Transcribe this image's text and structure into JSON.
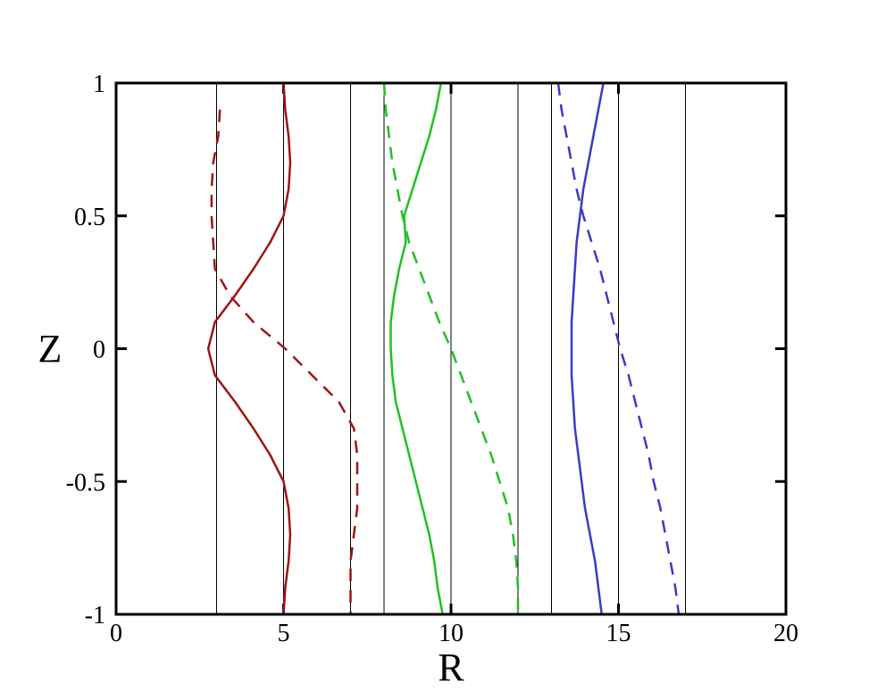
{
  "chart_data": {
    "type": "line",
    "x_label": "R",
    "y_label": "Z",
    "xlim": [
      0,
      20
    ],
    "xticks": [
      0,
      5,
      10,
      15,
      20
    ],
    "ylim": [
      -1,
      1
    ],
    "yticks": [
      -1,
      -0.5,
      0,
      0.5,
      1
    ],
    "reference_lines": [
      3,
      5,
      7,
      8,
      10,
      12,
      13,
      15,
      17
    ],
    "y": [
      1,
      0.9,
      0.8,
      0.7,
      0.6,
      0.5,
      0.4,
      0.3,
      0.2,
      0.1,
      0,
      -0.1,
      -0.2,
      -0.3,
      -0.4,
      -0.5,
      -0.6,
      -0.7,
      -0.8,
      -0.9,
      -1
    ],
    "series": [
      {
        "color": "#a01414",
        "dash": false,
        "values": [
          5.0,
          5.05,
          5.15,
          5.2,
          5.15,
          5.0,
          4.6,
          4.1,
          3.55,
          2.95,
          2.75,
          2.95,
          3.55,
          4.1,
          4.6,
          5.0,
          5.15,
          5.2,
          5.15,
          5.05,
          5.0
        ]
      },
      {
        "color": "#a01414",
        "dash": true,
        "values": [
          null,
          3.1,
          3.05,
          2.9,
          2.85,
          2.85,
          2.9,
          2.95,
          3.4,
          4.1,
          5.05,
          5.85,
          6.65,
          7.1,
          7.2,
          7.2,
          7.2,
          7.1,
          7.0,
          7.0,
          7.0
        ]
      },
      {
        "color": "#22c022",
        "dash": false,
        "values": [
          9.7,
          9.55,
          9.35,
          9.1,
          8.85,
          8.6,
          8.65,
          8.45,
          8.3,
          8.2,
          8.2,
          8.25,
          8.35,
          8.55,
          8.75,
          8.95,
          9.15,
          9.35,
          9.5,
          9.6,
          9.75
        ]
      },
      {
        "color": "#22c022",
        "dash": true,
        "values": [
          8.0,
          8.05,
          8.15,
          8.25,
          8.4,
          8.55,
          8.75,
          9.05,
          9.35,
          9.65,
          10.0,
          10.3,
          10.6,
          10.9,
          11.2,
          11.45,
          11.7,
          11.85,
          11.95,
          12.0,
          12.0
        ]
      },
      {
        "color": "#3a3ac8",
        "dash": false,
        "values": [
          14.55,
          14.4,
          14.25,
          14.1,
          13.95,
          13.85,
          13.75,
          13.7,
          13.65,
          13.6,
          13.6,
          13.6,
          13.65,
          13.7,
          13.8,
          13.9,
          14.0,
          14.15,
          14.3,
          14.4,
          14.5
        ]
      },
      {
        "color": "#3a3ac8",
        "dash": true,
        "values": [
          13.2,
          13.3,
          13.45,
          13.6,
          13.75,
          13.95,
          14.2,
          14.45,
          14.65,
          14.85,
          15.05,
          15.3,
          15.5,
          15.7,
          15.9,
          16.05,
          16.25,
          16.4,
          16.55,
          16.7,
          16.8
        ]
      }
    ]
  }
}
